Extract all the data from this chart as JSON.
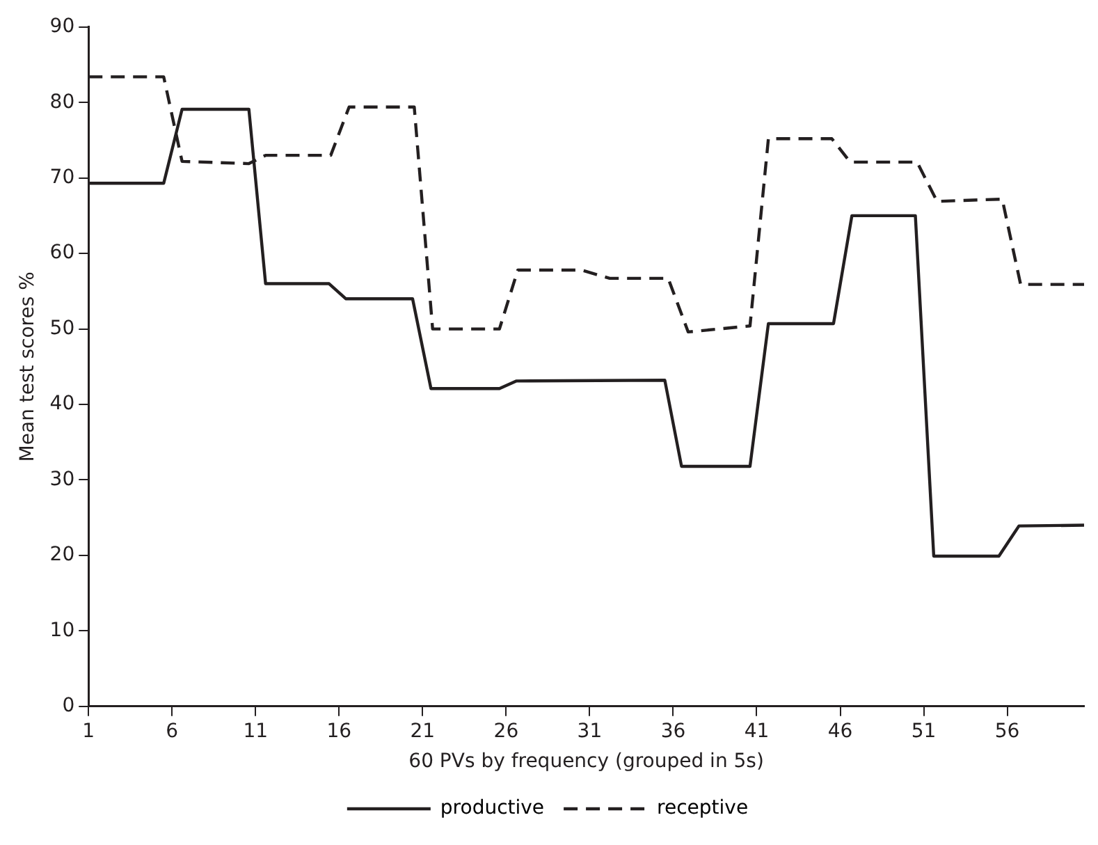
{
  "chart_data": {
    "type": "line",
    "xlabel": "60 PVs by frequency (grouped in 5s)",
    "ylabel": "Mean test scores %",
    "xlim": [
      1,
      60.6
    ],
    "xticks": [
      1,
      6,
      11,
      16,
      21,
      26,
      31,
      36,
      41,
      46,
      51,
      56
    ],
    "ylim": [
      0,
      90
    ],
    "yticks": [
      0,
      10,
      20,
      30,
      40,
      50,
      60,
      70,
      80,
      90
    ],
    "grid": false,
    "legend": "bottom",
    "marker": "none",
    "series": [
      {
        "name": "productive",
        "color": "#231f20",
        "line_style": "solid",
        "x": [
          1,
          5.5,
          6.6,
          10.6,
          11.6,
          15.4,
          16.4,
          20.4,
          21.5,
          25.6,
          26.6,
          35.5,
          36.5,
          40.6,
          41.7,
          45.6,
          46.7,
          50.5,
          51.6,
          55.5,
          56.7,
          60.6
        ],
        "values": [
          69.3,
          69.3,
          79.1,
          79.1,
          56.0,
          56.0,
          54.0,
          54.0,
          42.1,
          42.1,
          43.1,
          43.2,
          31.8,
          31.8,
          50.7,
          50.7,
          65.0,
          65.0,
          19.9,
          19.9,
          23.9,
          24.0
        ]
      },
      {
        "name": "receptive",
        "color": "#231f20",
        "line_style": "dashed",
        "x": [
          1,
          5.5,
          6.6,
          10.6,
          11.6,
          15.5,
          16.6,
          20.5,
          21.6,
          25.6,
          26.7,
          30.5,
          32.2,
          35.7,
          36.9,
          40.6,
          41.7,
          45.5,
          46.6,
          50.6,
          51.8,
          55.7,
          56.8,
          60.6
        ],
        "values": [
          83.4,
          83.4,
          72.2,
          71.9,
          73.0,
          73.0,
          79.4,
          79.4,
          50.0,
          50.0,
          57.8,
          57.8,
          56.7,
          56.7,
          49.6,
          50.4,
          75.2,
          75.2,
          72.1,
          72.1,
          66.9,
          67.2,
          55.9,
          55.9
        ]
      }
    ]
  }
}
